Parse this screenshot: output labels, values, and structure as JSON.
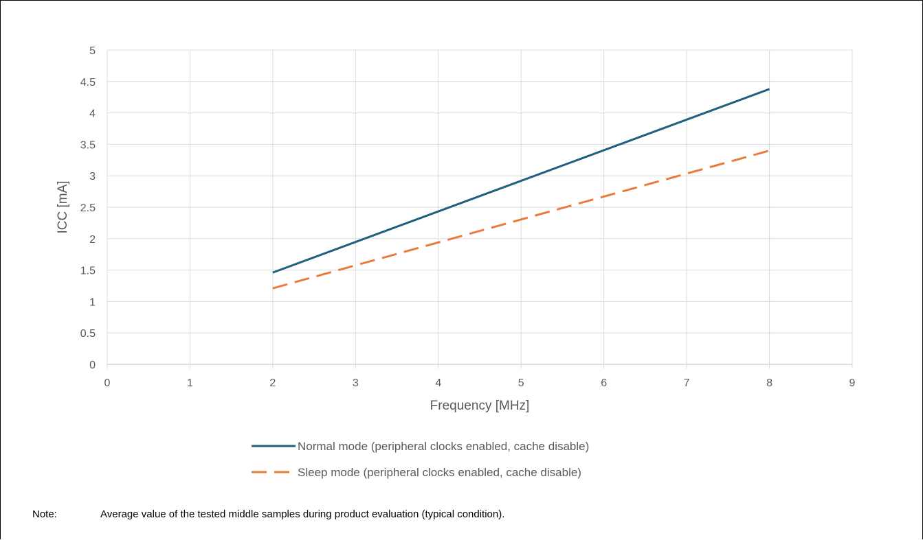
{
  "chart_data": {
    "type": "line",
    "xlabel": "Frequency [MHz]",
    "ylabel": "ICC [mA]",
    "xlim": [
      0,
      9
    ],
    "ylim": [
      0,
      5
    ],
    "xticks": [
      "0",
      "1",
      "2",
      "3",
      "4",
      "5",
      "6",
      "7",
      "8",
      "9"
    ],
    "yticks": [
      "0",
      "0.5",
      "1",
      "1.5",
      "2",
      "2.5",
      "3",
      "3.5",
      "4",
      "4.5",
      "5"
    ],
    "grid": true,
    "legend_position": "bottom",
    "series": [
      {
        "name": "Normal mode (peripheral clocks enabled, cache disable)",
        "color": "#1f5f7f",
        "dash": "solid",
        "x": [
          2,
          8
        ],
        "y": [
          1.46,
          4.38
        ]
      },
      {
        "name": "Sleep mode (peripheral clocks enabled, cache disable)",
        "color": "#e97c3b",
        "dash": "dashed",
        "x": [
          2,
          8
        ],
        "y": [
          1.21,
          3.4
        ]
      }
    ]
  },
  "note": {
    "label": "Note:",
    "text": "Average value of the tested middle samples during product evaluation (typical condition)."
  }
}
